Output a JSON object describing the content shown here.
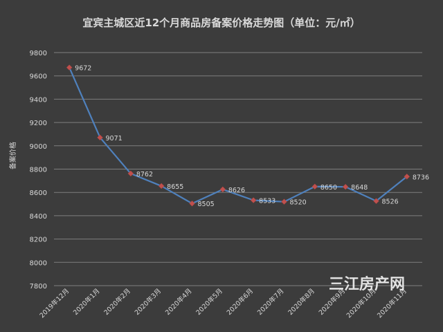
{
  "chart_data": {
    "type": "line",
    "title": "宜宾主城区近12个月商品房备案价格走势图（单位：元/㎡）",
    "ylabel": "备案价格",
    "xlabel": "",
    "categories": [
      "2019年12月",
      "2020年1月",
      "2020年2月",
      "2020年3月",
      "2020年4月",
      "2020年5月",
      "2020年6月",
      "2020年7月",
      "2020年8月",
      "2020年9月",
      "2020年10月",
      "2020年11月"
    ],
    "values": [
      9672,
      9071,
      8762,
      8655,
      8505,
      8626,
      8533,
      8520,
      8650,
      8648,
      8526,
      8736
    ],
    "ylim": [
      7800,
      9800
    ],
    "ytick_step": 200,
    "yticks": [
      "9800",
      "9600",
      "9400",
      "9200",
      "9000",
      "8800",
      "8600",
      "8400",
      "8200",
      "8000",
      "7800"
    ],
    "grid": true,
    "legend": "none",
    "series_color": "#4f81bd",
    "marker_color": "#c0504d"
  },
  "watermark": "三江房产网",
  "colors": {
    "background": "#3c3c3c",
    "text": "#d9d9d9",
    "grid": "#7f7f7f"
  }
}
